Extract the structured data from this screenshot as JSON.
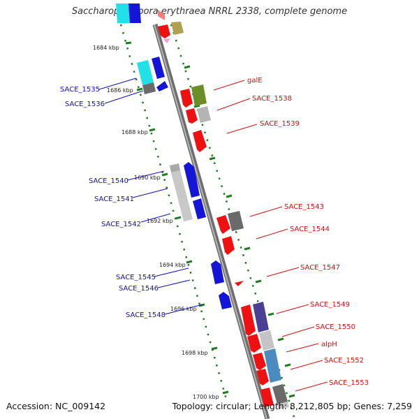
{
  "header": {
    "title": "Saccharopolyspora erythraea NRRL 2338, complete genome"
  },
  "footer": {
    "accession": "Accession: NC_009142",
    "summary": "Topology: circular; Length: 8,212,805 bp; Genes: 7,259"
  },
  "colors": {
    "forward_label": "#d01010",
    "reverse_label": "#1010c0",
    "tick": "#1e7e1e",
    "backbone": "#8a8a8a"
  },
  "ruler": [
    "1684 kbp",
    "1686 kbp",
    "1688 kbp",
    "1690 kbp",
    "1692 kbp",
    "1694 kbp",
    "1696 kbp",
    "1698 kbp",
    "1700 kbp"
  ],
  "reverse_genes": [
    "SACE_1535",
    "SACE_1536",
    "SACE_1540",
    "SACE_1541",
    "SACE_1542",
    "SACE_1545",
    "SACE_1546",
    "SACE_1548"
  ],
  "forward_genes": [
    "galE",
    "SACE_1538",
    "SACE_1539",
    "SACE_1543",
    "SACE_1544",
    "SACE_1547",
    "SACE_1549",
    "SACE_1550",
    "alpH",
    "SACE_1552",
    "SACE_1553"
  ]
}
